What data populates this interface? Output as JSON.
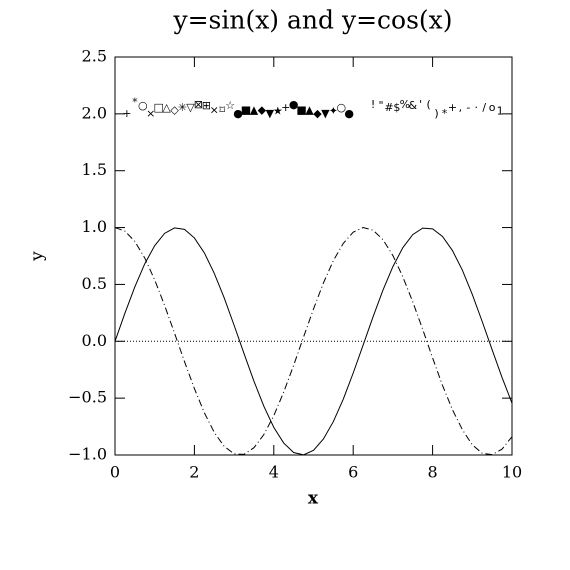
{
  "chart_data": {
    "type": "line",
    "title": "y=sin(x) and y=cos(x)",
    "x_label": "x",
    "y_label": "y",
    "x": [
      0,
      0.25,
      0.5,
      0.75,
      1,
      1.25,
      1.5,
      1.75,
      2,
      2.25,
      2.5,
      2.75,
      3,
      3.25,
      3.5,
      3.75,
      4,
      4.25,
      4.5,
      4.75,
      5,
      5.25,
      5.5,
      5.75,
      6,
      6.25,
      6.5,
      6.75,
      7,
      7.25,
      7.5,
      7.75,
      8,
      8.25,
      8.5,
      8.75,
      9,
      9.25,
      9.5,
      9.75,
      10
    ],
    "series": [
      {
        "color": "#000000",
        "dash": "none",
        "values": [
          0,
          0.247,
          0.479,
          0.682,
          0.841,
          0.949,
          0.997,
          0.984,
          0.909,
          0.778,
          0.598,
          0.382,
          0.141,
          -0.108,
          -0.351,
          -0.572,
          -0.757,
          -0.895,
          -0.978,
          -0.999,
          -0.959,
          -0.859,
          -0.706,
          -0.509,
          -0.279,
          -0.033,
          0.215,
          0.45,
          0.657,
          0.823,
          0.938,
          0.995,
          0.989,
          0.922,
          0.798,
          0.625,
          0.412,
          0.173,
          -0.075,
          -0.319,
          -0.544
        ]
      },
      {
        "color": "#000000",
        "dash": "7 3 1 3",
        "values": [
          1,
          0.969,
          0.878,
          0.732,
          0.54,
          0.315,
          0.071,
          -0.178,
          -0.416,
          -0.628,
          -0.801,
          -0.924,
          -0.99,
          -0.994,
          -0.936,
          -0.82,
          -0.654,
          -0.446,
          -0.211,
          0.038,
          0.284,
          0.513,
          0.709,
          0.861,
          0.96,
          1,
          0.977,
          0.894,
          0.754,
          0.567,
          0.347,
          0.105,
          -0.146,
          -0.388,
          -0.602,
          -0.777,
          -0.911,
          -0.985,
          -0.997,
          -0.948,
          -0.839
        ]
      }
    ],
    "reference_line": 0,
    "markers": {
      "x": [
        0.3,
        0.5,
        0.7,
        0.9,
        1.1,
        1.3,
        1.5,
        1.7,
        1.9,
        2.1,
        2.3,
        2.5,
        2.7,
        2.9,
        3.1,
        3.3,
        3.5,
        3.7,
        3.9,
        4.1,
        4.3,
        4.5,
        4.7,
        4.9,
        5.1,
        5.3,
        5.5,
        5.7,
        5.9,
        6.5,
        6.7,
        6.9,
        7.1,
        7.3,
        7.5,
        7.7,
        7.9,
        8.1,
        8.3,
        8.5,
        8.7,
        8.9,
        9.1,
        9.3,
        9.5,
        9.7
      ],
      "values": [
        2.0,
        2.1,
        2.07,
        2.0,
        2.05,
        2.05,
        2.03,
        2.05,
        2.05,
        2.08,
        2.07,
        2.03,
        2.03,
        2.07,
        2.0,
        2.03,
        2.03,
        2.03,
        2.0,
        2.02,
        2.05,
        2.08,
        2.03,
        2.03,
        2.0,
        2.0,
        2.02,
        2.05,
        2.0,
        2.08,
        2.07,
        2.05,
        2.05,
        2.08,
        2.07,
        2.08,
        2.08,
        2.0,
        2.0,
        2.05,
        2.05,
        2.05,
        2.05,
        2.05,
        2.05,
        2.02
      ],
      "symbols": [
        "+",
        "*",
        "○",
        "×",
        "□",
        "△",
        "◇",
        "✳",
        "▽",
        "⊠",
        "⊞",
        "×",
        "⌑",
        "☆",
        "●",
        "■",
        "▲",
        "◆",
        "▼",
        "★",
        "+",
        "●",
        "■",
        "▲",
        "◆",
        "▼",
        "✦",
        "○",
        "●",
        "!",
        "\"",
        "#",
        "$",
        "%",
        "&",
        "'",
        "(",
        ")",
        "*",
        "+",
        ",",
        "-",
        "·",
        "/",
        "o",
        "1"
      ]
    },
    "xlim": [
      0,
      10
    ],
    "ylim": [
      -1,
      2.5
    ],
    "xticks": [
      0,
      2,
      4,
      6,
      8,
      10
    ],
    "yticks": [
      {
        "value": -1,
        "label": "−1.0"
      },
      {
        "value": -0.5,
        "label": "−0.5"
      },
      {
        "value": 0,
        "label": "0.0"
      },
      {
        "value": 0.5,
        "label": "0.5"
      },
      {
        "value": 1,
        "label": "1.0"
      },
      {
        "value": 1.5,
        "label": "1.5"
      },
      {
        "value": 2,
        "label": "2.0"
      },
      {
        "value": 2.5,
        "label": "2.5"
      }
    ]
  }
}
